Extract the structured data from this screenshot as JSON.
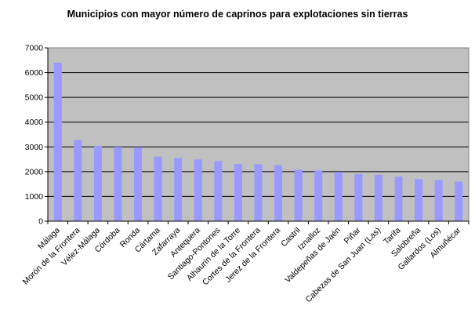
{
  "chart_data": {
    "type": "bar",
    "title": "Municipios con mayor número de caprinos para explotaciones sin tierras",
    "xlabel": "",
    "ylabel": "",
    "ylim": [
      0,
      7000
    ],
    "yticks": [
      "0",
      "1000",
      "2000",
      "3000",
      "4000",
      "5000",
      "6000",
      "7000"
    ],
    "grid": true,
    "legend": "none",
    "categories": [
      "Málaga",
      "Morón de la Frontera",
      "Vélez-Málaga",
      "Córdoba",
      "Ronda",
      "Cártama",
      "Zafarraya",
      "Antequera",
      "Santiago-Pontones",
      "Alhaurín de la Torre",
      "Cortes de la Frontera",
      "Jerez de la Frontera",
      "Castril",
      "Iznalloz",
      "Valdepeñas de Jaén",
      "Piñar",
      "Cabezas de San Juan (Las)",
      "Tarifa",
      "Salobreña",
      "Gallardos (Los)",
      "Almuñécar"
    ],
    "values": [
      6400,
      3280,
      3040,
      3000,
      2990,
      2610,
      2550,
      2490,
      2430,
      2310,
      2300,
      2270,
      2080,
      2050,
      1990,
      1900,
      1870,
      1800,
      1700,
      1660,
      1600
    ],
    "colors": {
      "plot_background": "#c0c0c0",
      "bar": "#9999ff",
      "gridline": "#000000",
      "axis": "#000000"
    }
  }
}
